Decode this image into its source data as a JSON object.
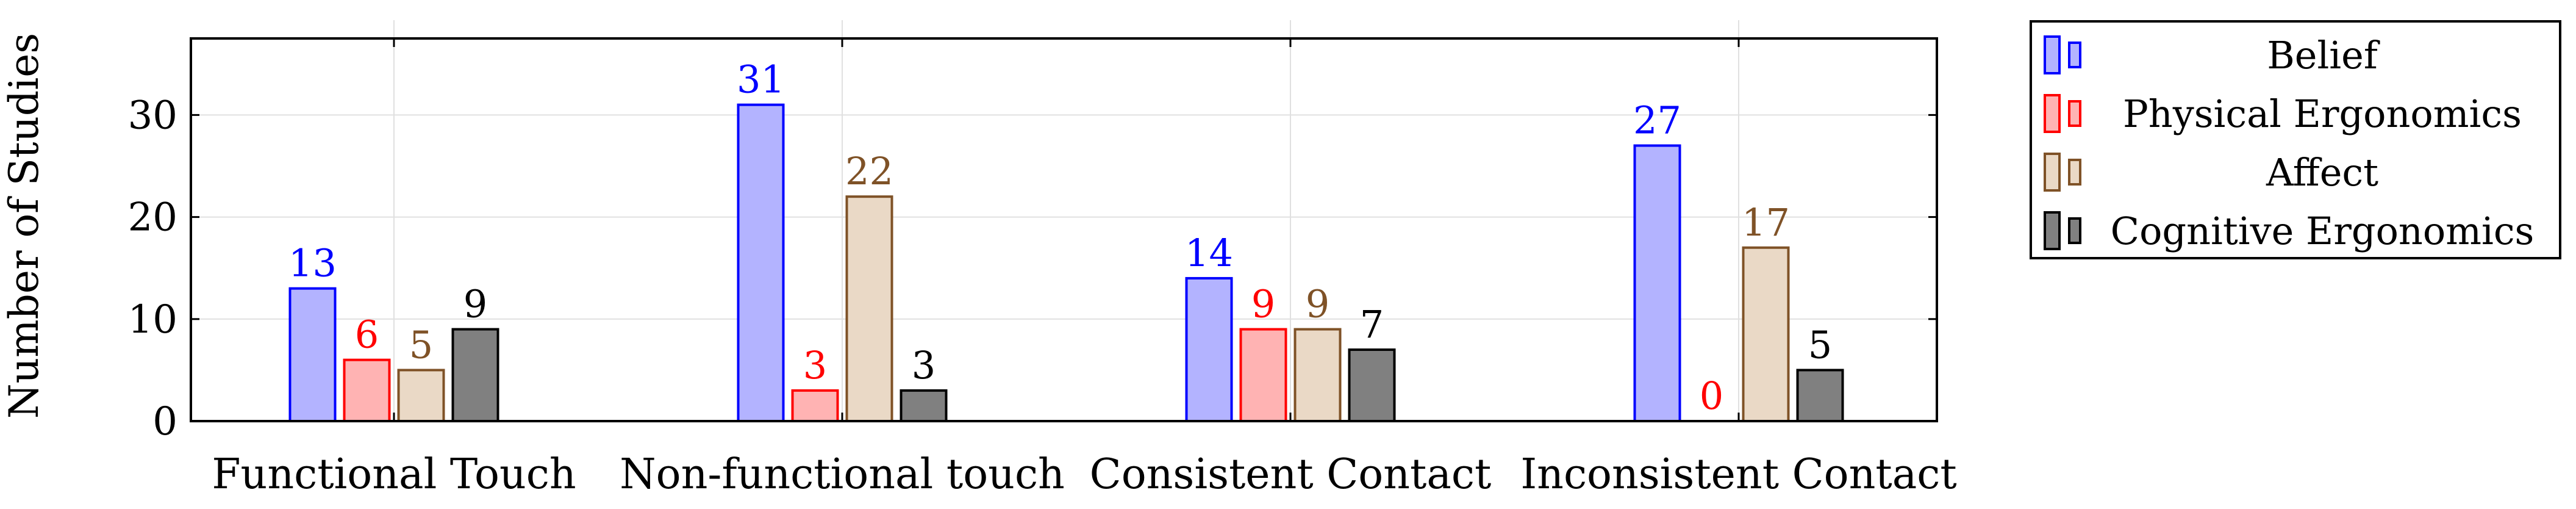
{
  "chart_data": {
    "type": "bar",
    "title": "",
    "xlabel": "",
    "ylabel": "Number of Studies",
    "ylim": [
      0,
      37.5
    ],
    "yticks": [
      0,
      10,
      20,
      30
    ],
    "grid": true,
    "legend_position": "outside-right",
    "categories": [
      "Functional Touch",
      "Non-functional touch",
      "Consistent Contact",
      "Inconsistent Contact"
    ],
    "series": [
      {
        "name": "Belief",
        "values": [
          13,
          31,
          14,
          27
        ],
        "fill": "#b3b3ff",
        "stroke": "#0000ff",
        "label_color": "#0000ff"
      },
      {
        "name": "Physical Ergonomics",
        "values": [
          6,
          3,
          9,
          0
        ],
        "fill": "#ffb3b3",
        "stroke": "#ff0000",
        "label_color": "#ff0000"
      },
      {
        "name": "Affect",
        "values": [
          5,
          22,
          9,
          17
        ],
        "fill": "#ead9c6",
        "stroke": "#7f5227",
        "label_color": "#7f5227"
      },
      {
        "name": "Cognitive Ergonomics",
        "values": [
          9,
          3,
          7,
          5
        ],
        "fill": "#808080",
        "stroke": "#000000",
        "label_color": "#000000"
      }
    ]
  }
}
